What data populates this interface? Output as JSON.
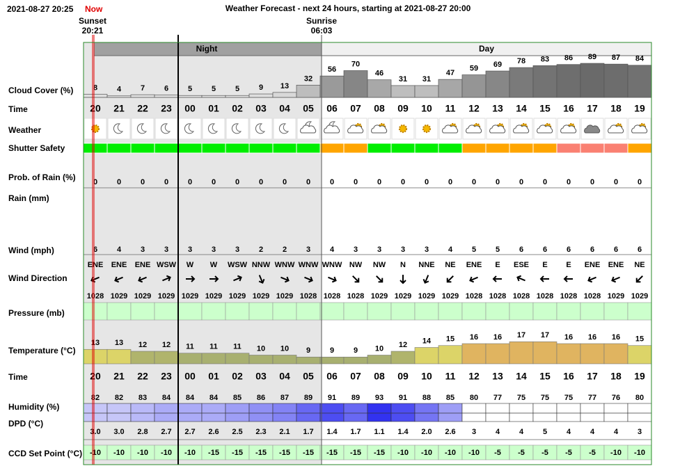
{
  "header": {
    "datetime": "2021-08-27 20:25",
    "now": "Now",
    "title": "Weather Forecast - next 24 hours, starting at 2021-08-27 20:00",
    "sunset_label": "Sunset",
    "sunset_time": "20:21",
    "sunrise_label": "Sunrise",
    "sunrise_time": "06:03",
    "night": "Night",
    "day": "Day"
  },
  "row_labels": {
    "cloud": "Cloud Cover (%)",
    "time": "Time",
    "weather": "Weather",
    "shutter": "Shutter Safety",
    "rain_prob": "Prob. of Rain (%)",
    "rain": "Rain (mm)",
    "wind": "Wind (mph)",
    "wind_dir": "Wind Direction",
    "pressure": "Pressure (mb)",
    "temperature": "Temperature (°C)",
    "time2": "Time",
    "humidity": "Humidity (%)",
    "dpd": "DPD (°C)",
    "ccd": "CCD Set Point (°C)"
  },
  "hours": [
    "20",
    "21",
    "22",
    "23",
    "00",
    "01",
    "02",
    "03",
    "04",
    "05",
    "06",
    "07",
    "08",
    "09",
    "10",
    "11",
    "12",
    "13",
    "14",
    "15",
    "16",
    "17",
    "18",
    "19"
  ],
  "cloud_cover": [
    8,
    4,
    7,
    6,
    5,
    5,
    5,
    9,
    13,
    32,
    56,
    70,
    46,
    31,
    31,
    47,
    59,
    69,
    78,
    83,
    86,
    89,
    87,
    84
  ],
  "weather": [
    "sun",
    "moon",
    "moon",
    "moon",
    "moon",
    "moon",
    "moon",
    "moon",
    "moon",
    "cloud-moon",
    "cloud-moon",
    "cloud-sun",
    "cloud-sun",
    "sun",
    "sun",
    "cloud-sun",
    "cloud-sun",
    "cloud-sun",
    "cloud-sun",
    "cloud-sun",
    "cloud-sun",
    "cloud",
    "cloud-sun",
    "cloud-sun"
  ],
  "shutter_safety_colors": [
    "#00ee00",
    "#00ee00",
    "#00ee00",
    "#00ee00",
    "#00ee00",
    "#00ee00",
    "#00ee00",
    "#00ee00",
    "#00ee00",
    "#00ee00",
    "#ffa500",
    "#ffa500",
    "#00ee00",
    "#00ee00",
    "#00ee00",
    "#00ee00",
    "#ffa500",
    "#ffa500",
    "#ffa500",
    "#ffa500",
    "#fa8072",
    "#fa8072",
    "#fa8072",
    "#ffa500"
  ],
  "rain_prob": [
    0,
    0,
    0,
    0,
    0,
    0,
    0,
    0,
    0,
    0,
    0,
    0,
    0,
    0,
    0,
    0,
    0,
    0,
    0,
    0,
    0,
    0,
    0,
    0
  ],
  "wind": [
    6,
    4,
    3,
    3,
    3,
    3,
    3,
    2,
    2,
    3,
    4,
    3,
    3,
    3,
    3,
    4,
    5,
    5,
    6,
    6,
    6,
    6,
    6,
    6
  ],
  "wind_dir": [
    "ENE",
    "ENE",
    "ENE",
    "WSW",
    "W",
    "W",
    "WSW",
    "NNW",
    "WNW",
    "WNW",
    "WNW",
    "NW",
    "NW",
    "N",
    "NNE",
    "NE",
    "ENE",
    "E",
    "ESE",
    "E",
    "E",
    "ENE",
    "ENE",
    "NE"
  ],
  "pressure": [
    1028,
    1029,
    1029,
    1029,
    1029,
    1029,
    1029,
    1029,
    1029,
    1028,
    1028,
    1028,
    1029,
    1029,
    1029,
    1029,
    1028,
    1028,
    1028,
    1028,
    1028,
    1028,
    1029,
    1029
  ],
  "temperature": [
    13,
    13,
    12,
    12,
    11,
    11,
    11,
    10,
    10,
    9,
    9,
    9,
    10,
    12,
    14,
    15,
    16,
    16,
    17,
    17,
    16,
    16,
    16,
    15
  ],
  "humidity": [
    82,
    82,
    83,
    84,
    84,
    84,
    85,
    86,
    87,
    89,
    91,
    89,
    93,
    91,
    88,
    85,
    80,
    77,
    75,
    75,
    75,
    77,
    76,
    80
  ],
  "dpd": [
    "3.0",
    "3.0",
    "2.8",
    "2.7",
    "2.7",
    "2.6",
    "2.5",
    "2.3",
    "2.1",
    "1.7",
    "1.4",
    "1.7",
    "1.1",
    "1.4",
    "2.0",
    "2.6",
    "3",
    "4",
    "4",
    "5",
    "4",
    "4",
    "4",
    "3"
  ],
  "ccd_set_point": [
    -10,
    -10,
    -10,
    -10,
    -10,
    -15,
    -15,
    -15,
    -15,
    -15,
    -15,
    -15,
    -15,
    -10,
    -10,
    -10,
    -10,
    -5,
    -5,
    -5,
    -5,
    -5,
    -10,
    -10
  ]
}
